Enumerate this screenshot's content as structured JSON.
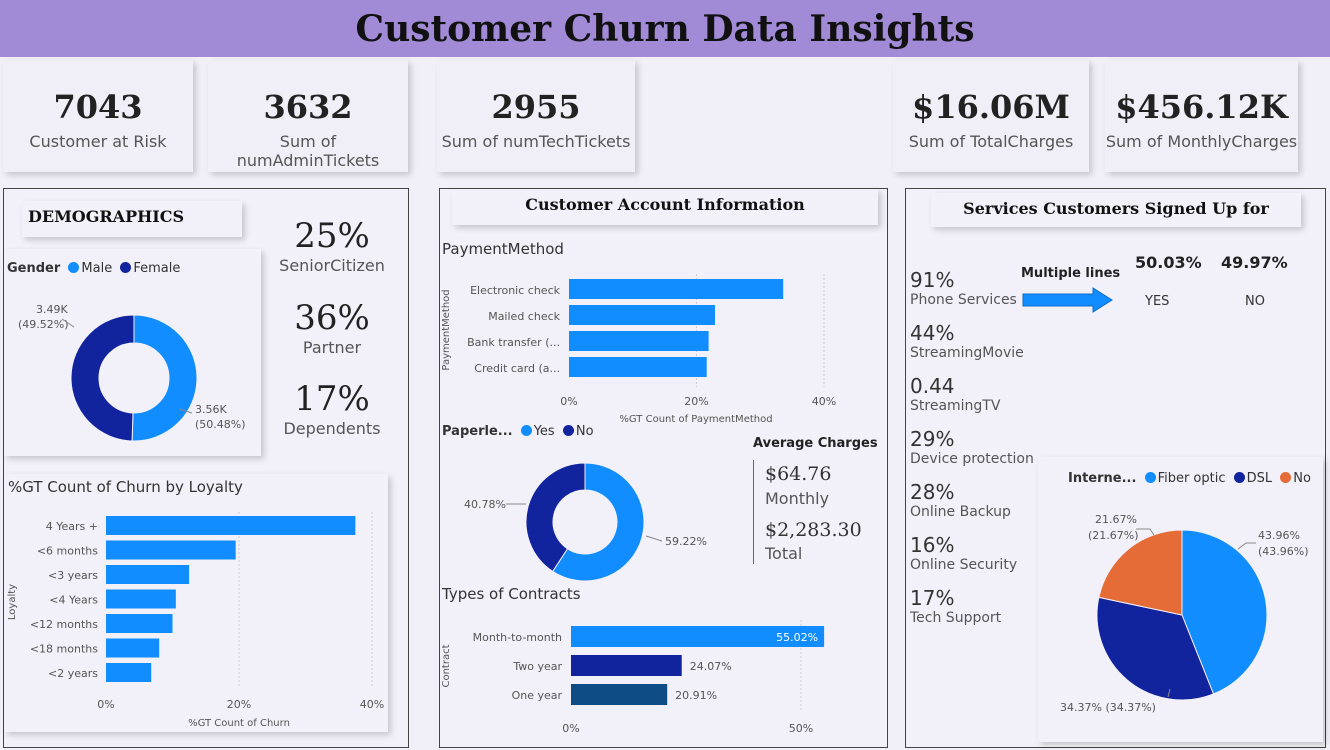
{
  "title": "Customer Churn Data Insights",
  "kpis": [
    {
      "value": "7043",
      "label": "Customer at Risk"
    },
    {
      "value": "3632",
      "label": "Sum of numAdminTickets"
    },
    {
      "value": "2955",
      "label": "Sum of numTechTickets"
    },
    {
      "value": "$16.06M",
      "label": "Sum of TotalCharges"
    },
    {
      "value": "$456.12K",
      "label": "Sum of MonthlyCharges"
    }
  ],
  "demographics": {
    "header": "DEMOGRAPHICS",
    "gender_legend_title": "Gender",
    "gender_legend": [
      "Male",
      "Female"
    ],
    "gender_labels": {
      "female": "3.49K",
      "female_pct": "(49.52%)",
      "male": "3.56K",
      "male_pct": "(50.48%)"
    },
    "senior_pct": "25%",
    "senior_label": "SeniorCitizen",
    "partner_pct": "36%",
    "partner_label": "Partner",
    "dependents_pct": "17%",
    "dependents_label": "Dependents",
    "loyalty_title": "%GT Count of Churn by Loyalty",
    "loyalty_axis_y": "Loyalty",
    "loyalty_axis_x": "%GT Count of Churn",
    "loyalty_ticks": [
      "0%",
      "20%",
      "40%"
    ]
  },
  "account": {
    "header": "Customer Account Information",
    "payment_title": "PaymentMethod",
    "payment_axis_y": "PaymentMethod",
    "payment_axis_x": "%GT Count of PaymentMethod",
    "payment_ticks": [
      "0%",
      "20%",
      "40%"
    ],
    "paperless_legend_title": "Paperle...",
    "paperless_legend": [
      "Yes",
      "No"
    ],
    "paperless_labels": {
      "no": "40.78%",
      "yes": "59.22%"
    },
    "avg_title": "Average Charges",
    "avg_monthly_value": "$64.76",
    "avg_monthly_label": "Monthly",
    "avg_total_value": "$2,283.30",
    "avg_total_label": "Total",
    "contracts_title": "Types of Contracts",
    "contracts_axis_y": "Contract",
    "contracts_ticks": [
      "0%",
      "50%"
    ]
  },
  "services": {
    "header": "Services Customers Signed Up for",
    "items": [
      {
        "value": "91%",
        "label": "Phone Services"
      },
      {
        "value": "44%",
        "label": "StreamingMovie"
      },
      {
        "value": "0.44",
        "label": "StreamingTV"
      },
      {
        "value": "29%",
        "label": "Device protection"
      },
      {
        "value": "28%",
        "label": "Online Backup"
      },
      {
        "value": "16%",
        "label": "Online Security"
      },
      {
        "value": "17%",
        "label": "Tech Support"
      }
    ],
    "multiple_lines_label": "Multiple lines",
    "yes_pct": "50.03%",
    "yes_label": "YES",
    "no_pct": "49.97%",
    "no_label": "NO",
    "internet_legend_title": "Interne...",
    "internet_legend": [
      "Fiber optic",
      "DSL",
      "No"
    ],
    "internet_labels": {
      "fiber": "43.96%",
      "fiber_paren": "(43.96%)",
      "dsl": "34.37% (34.37%)",
      "no": "21.67%",
      "no_paren": "(21.67%)"
    }
  },
  "colors": {
    "light_blue": "#118dff",
    "dark_blue": "#12239e",
    "navy": "#0e4c85",
    "orange": "#e66c37",
    "title_bar": "#a18ad6"
  },
  "chart_data": [
    {
      "type": "pie",
      "title": "",
      "categories": [
        "Male",
        "Female"
      ],
      "values": [
        50.48,
        49.52
      ],
      "counts": [
        "3.56K",
        "3.49K"
      ]
    },
    {
      "type": "bar",
      "title": "%GT Count of Churn by Loyalty",
      "ylabel": "Loyalty",
      "xlabel": "%GT Count of Churn",
      "categories": [
        "4 Years +",
        "<6 months",
        "<3 years",
        "<4 Years",
        "<12 months",
        "<18 months",
        "<2 years"
      ],
      "values": [
        37.5,
        19.5,
        12.5,
        10.5,
        10.0,
        8.0,
        6.8
      ],
      "xlim": [
        0,
        45
      ]
    },
    {
      "type": "bar",
      "title": "PaymentMethod",
      "ylabel": "PaymentMethod",
      "xlabel": "%GT Count of PaymentMethod",
      "categories": [
        "Electronic check",
        "Mailed check",
        "Bank transfer (...",
        "Credit card (a..."
      ],
      "values": [
        33.6,
        22.9,
        21.9,
        21.6
      ],
      "xlim": [
        0,
        45
      ]
    },
    {
      "type": "pie",
      "title": "Paperle...",
      "categories": [
        "Yes",
        "No"
      ],
      "values": [
        59.22,
        40.78
      ]
    },
    {
      "type": "bar",
      "title": "Types of Contracts",
      "ylabel": "Contract",
      "categories": [
        "Month-to-month",
        "Two year",
        "One year"
      ],
      "values": [
        55.02,
        24.07,
        20.91
      ],
      "labels": [
        "55.02%",
        "24.07%",
        "20.91%"
      ],
      "xlim": [
        0,
        60
      ]
    },
    {
      "type": "pie",
      "title": "Interne...",
      "categories": [
        "Fiber optic",
        "DSL",
        "No"
      ],
      "values": [
        43.96,
        34.37,
        21.67
      ]
    }
  ]
}
